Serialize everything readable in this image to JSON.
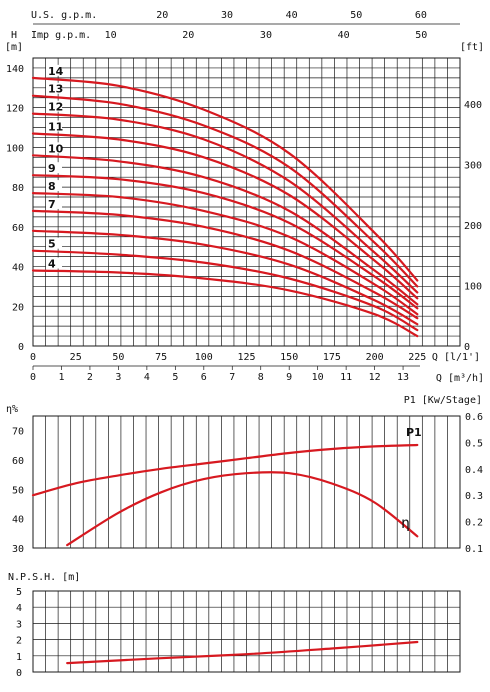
{
  "colors": {
    "curve": "#d71920",
    "grid": "#1a1a1a",
    "background": "#ffffff"
  },
  "top_axes": {
    "us_gpm": {
      "label": "U.S. g.p.m.",
      "ticks": [
        20,
        30,
        40,
        50,
        60
      ],
      "lps_per_unit": 0.06309
    },
    "imp_gpm": {
      "label": "Imp g.p.m.",
      "ticks": [
        10,
        20,
        30,
        40,
        50
      ],
      "lps_per_unit": 0.07577
    }
  },
  "chart_data": [
    {
      "type": "line",
      "title": "",
      "ylabel_left_top": "H",
      "ylabel_left_unit": "[m]",
      "ylabel_right": "[ft]",
      "xlabel_lps": "Q [l/1']",
      "xlabel_m3h": "Q [m³/h]",
      "xlim": [
        0,
        250
      ],
      "ylim": [
        0,
        145
      ],
      "x_ticks": [
        0,
        25,
        50,
        75,
        100,
        125,
        150,
        175,
        200,
        225
      ],
      "x_ticks_m3h": [
        0,
        1,
        2,
        3,
        4,
        5,
        6,
        7,
        8,
        9,
        10,
        11,
        12,
        13
      ],
      "y_ticks": [
        0,
        20,
        40,
        60,
        80,
        100,
        120,
        140
      ],
      "y_ticks_ft": [
        0,
        100,
        200,
        300,
        400
      ],
      "grid": true,
      "series": [
        {
          "name": "4",
          "x": [
            0,
            50,
            100,
            150,
            200,
            225
          ],
          "y": [
            38,
            37,
            34,
            28,
            16,
            5
          ]
        },
        {
          "name": "5",
          "x": [
            0,
            50,
            100,
            150,
            200,
            225
          ],
          "y": [
            48,
            46,
            42,
            34,
            20,
            8
          ]
        },
        {
          "name": "",
          "x": [
            0,
            50,
            100,
            150,
            200,
            225
          ],
          "y": [
            58,
            56,
            51,
            41,
            23,
            11
          ]
        },
        {
          "name": "7",
          "x": [
            0,
            50,
            100,
            150,
            200,
            225
          ],
          "y": [
            68,
            66,
            60,
            48,
            27,
            14
          ]
        },
        {
          "name": "8",
          "x": [
            0,
            50,
            100,
            150,
            200,
            225
          ],
          "y": [
            77,
            75,
            68,
            55,
            31,
            16
          ]
        },
        {
          "name": "9",
          "x": [
            0,
            50,
            100,
            150,
            200,
            225
          ],
          "y": [
            86,
            84,
            77,
            62,
            35,
            19
          ]
        },
        {
          "name": "10",
          "x": [
            0,
            50,
            100,
            150,
            200,
            225
          ],
          "y": [
            96,
            93,
            85,
            68,
            38,
            21
          ]
        },
        {
          "name": "11",
          "x": [
            0,
            50,
            100,
            150,
            200,
            225
          ],
          "y": [
            107,
            104,
            95,
            76,
            43,
            24
          ]
        },
        {
          "name": "12",
          "x": [
            0,
            50,
            100,
            150,
            200,
            225
          ],
          "y": [
            117,
            114,
            104,
            83,
            47,
            27
          ]
        },
        {
          "name": "13",
          "x": [
            0,
            50,
            100,
            150,
            200,
            225
          ],
          "y": [
            126,
            122,
            111,
            90,
            52,
            30
          ]
        },
        {
          "name": "14",
          "x": [
            0,
            50,
            100,
            150,
            200,
            225
          ],
          "y": [
            135,
            131,
            119,
            97,
            57,
            33
          ]
        }
      ]
    },
    {
      "type": "line",
      "title": "",
      "ylabel_left": "η%",
      "ylabel_right": "P1 [Kw/Stage]",
      "xlim": [
        0,
        250
      ],
      "ylim": [
        30,
        75
      ],
      "ylim_right": [
        0.1,
        0.6
      ],
      "y_ticks": [
        30,
        40,
        50,
        60,
        70
      ],
      "y_ticks_right": [
        0.1,
        0.2,
        0.3,
        0.4,
        0.5,
        0.6
      ],
      "grid": true,
      "series": [
        {
          "name": "η",
          "axis": "left",
          "x": [
            20,
            50,
            75,
            100,
            125,
            150,
            175,
            200,
            225
          ],
          "y": [
            31,
            42,
            49,
            53.5,
            55.5,
            55.5,
            52,
            45.5,
            34
          ]
        },
        {
          "name": "P1",
          "axis": "right",
          "x": [
            0,
            25,
            50,
            75,
            100,
            125,
            150,
            175,
            200,
            225
          ],
          "y": [
            0.3,
            0.345,
            0.375,
            0.4,
            0.42,
            0.44,
            0.46,
            0.475,
            0.485,
            0.49
          ]
        }
      ]
    },
    {
      "type": "line",
      "title": "",
      "ylabel": "N.P.S.H. [m]",
      "xlim": [
        0,
        250
      ],
      "ylim": [
        0,
        5
      ],
      "y_ticks": [
        0,
        1,
        2,
        3,
        4,
        5
      ],
      "grid": true,
      "series": [
        {
          "name": "",
          "x": [
            20,
            75,
            125,
            175,
            225
          ],
          "y": [
            0.55,
            0.85,
            1.1,
            1.45,
            1.85
          ]
        }
      ]
    }
  ]
}
